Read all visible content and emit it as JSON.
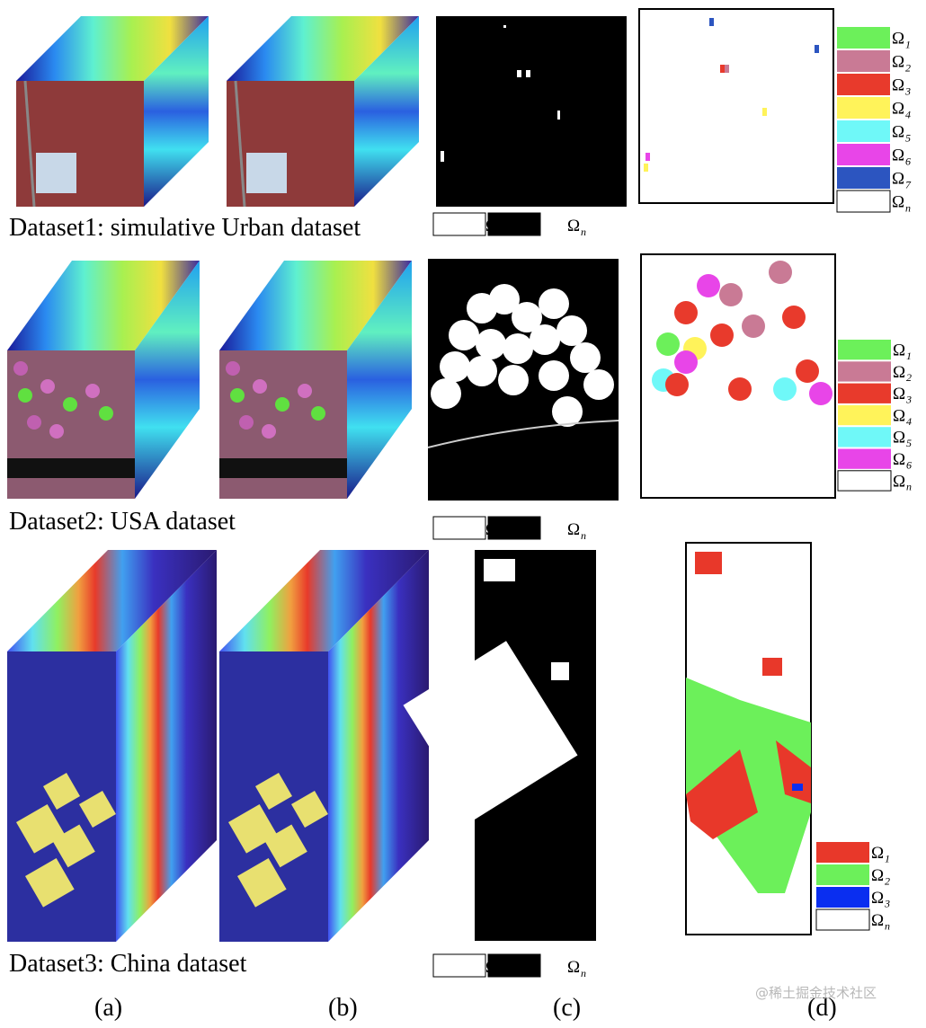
{
  "rows": [
    {
      "caption": "Dataset1: simulative Urban dataset",
      "change_legend": [
        {
          "symbol": "Ω",
          "sub": "c",
          "color": "#ffffff"
        },
        {
          "symbol": "Ω",
          "sub": "n",
          "color": "#000000"
        }
      ],
      "class_legend": [
        {
          "symbol": "Ω",
          "sub": "1",
          "color": "#6cf05a"
        },
        {
          "symbol": "Ω",
          "sub": "2",
          "color": "#c97a95"
        },
        {
          "symbol": "Ω",
          "sub": "3",
          "color": "#e83a2c"
        },
        {
          "symbol": "Ω",
          "sub": "4",
          "color": "#fff35a"
        },
        {
          "symbol": "Ω",
          "sub": "5",
          "color": "#6ff8f8"
        },
        {
          "symbol": "Ω",
          "sub": "6",
          "color": "#e845e8"
        },
        {
          "symbol": "Ω",
          "sub": "7",
          "color": "#2c55c0"
        },
        {
          "symbol": "Ω",
          "sub": "n",
          "color": "#ffffff"
        }
      ]
    },
    {
      "caption": "Dataset2: USA dataset",
      "change_legend": [
        {
          "symbol": "Ω",
          "sub": "c",
          "color": "#ffffff"
        },
        {
          "symbol": "Ω",
          "sub": "n",
          "color": "#000000"
        }
      ],
      "class_legend": [
        {
          "symbol": "Ω",
          "sub": "1",
          "color": "#6cf05a"
        },
        {
          "symbol": "Ω",
          "sub": "2",
          "color": "#c97a95"
        },
        {
          "symbol": "Ω",
          "sub": "3",
          "color": "#e83a2c"
        },
        {
          "symbol": "Ω",
          "sub": "4",
          "color": "#fff35a"
        },
        {
          "symbol": "Ω",
          "sub": "5",
          "color": "#6ff8f8"
        },
        {
          "symbol": "Ω",
          "sub": "6",
          "color": "#e845e8"
        },
        {
          "symbol": "Ω",
          "sub": "n",
          "color": "#ffffff"
        }
      ]
    },
    {
      "caption": "Dataset3: China dataset",
      "change_legend": [
        {
          "symbol": "Ω",
          "sub": "c",
          "color": "#ffffff"
        },
        {
          "symbol": "Ω",
          "sub": "n",
          "color": "#000000"
        }
      ],
      "class_legend": [
        {
          "symbol": "Ω",
          "sub": "1",
          "color": "#e8382a"
        },
        {
          "symbol": "Ω",
          "sub": "2",
          "color": "#6cf05a"
        },
        {
          "symbol": "Ω",
          "sub": "3",
          "color": "#0a2ef0"
        },
        {
          "symbol": "Ω",
          "sub": "n",
          "color": "#ffffff"
        }
      ]
    }
  ],
  "panel_labels": [
    "(a)",
    "(b)",
    "(c)",
    "(d)"
  ],
  "watermark": "@稀土掘金技术社区"
}
